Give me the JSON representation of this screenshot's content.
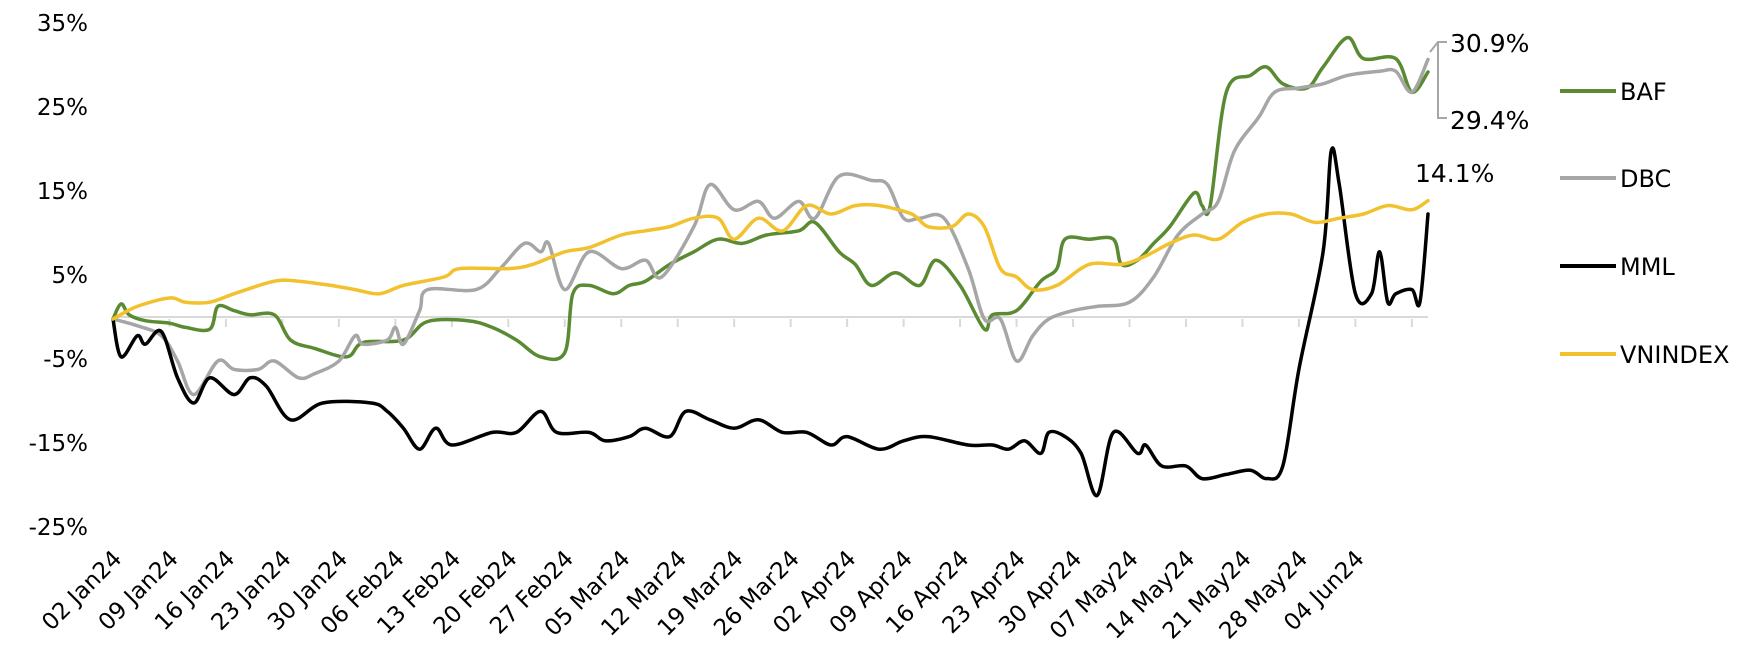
{
  "chart_data": {
    "type": "line",
    "title": "",
    "xlabel": "",
    "ylabel": "",
    "ylim": [
      -25,
      35
    ],
    "y_ticks": [
      "35%",
      "25%",
      "15%",
      "5%",
      "-5%",
      "-15%",
      "-25%"
    ],
    "y_tick_values": [
      35,
      25,
      15,
      5,
      -5,
      -15,
      -25
    ],
    "x_ticks": [
      "02 Jan24",
      "09 Jan24",
      "16 Jan24",
      "23 Jan24",
      "30 Jan24",
      "06 Feb24",
      "13 Feb24",
      "20 Feb24",
      "27 Feb24",
      "05 Mar24",
      "12 Mar24",
      "19 Mar24",
      "26 Mar24",
      "02 Apr24",
      "09 Apr24",
      "16 Apr24",
      "23 Apr24",
      "30 Apr24",
      "07 May24",
      "14 May24",
      "21 May24",
      "28 May24",
      "04 Jun24"
    ],
    "x_domain": [
      "2024-01-02",
      "2024-06-13"
    ],
    "legend_position": "right",
    "grid": false,
    "series": [
      {
        "name": "BAF",
        "color": "#5a8a32",
        "points": [
          [
            "2024-01-02",
            0
          ],
          [
            "2024-01-03",
            1.8
          ],
          [
            "2024-01-04",
            0.5
          ],
          [
            "2024-01-06",
            -0.2
          ],
          [
            "2024-01-09",
            -0.5
          ],
          [
            "2024-01-11",
            -1
          ],
          [
            "2024-01-14",
            -1.2
          ],
          [
            "2024-01-15",
            1.5
          ],
          [
            "2024-01-17",
            1
          ],
          [
            "2024-01-19",
            0.5
          ],
          [
            "2024-01-22",
            0.5
          ],
          [
            "2024-01-24",
            -2.5
          ],
          [
            "2024-01-27",
            -3.5
          ],
          [
            "2024-01-31",
            -4.5
          ],
          [
            "2024-02-02",
            -2.8
          ],
          [
            "2024-02-07",
            -2.5
          ],
          [
            "2024-02-10",
            -0.3
          ],
          [
            "2024-02-15",
            -0.2
          ],
          [
            "2024-02-18",
            -1
          ],
          [
            "2024-02-21",
            -2.5
          ],
          [
            "2024-02-24",
            -4.5
          ],
          [
            "2024-02-27",
            -4
          ],
          [
            "2024-02-28",
            3
          ],
          [
            "2024-03-01",
            4
          ],
          [
            "2024-03-04",
            3
          ],
          [
            "2024-03-06",
            4
          ],
          [
            "2024-03-08",
            4.5
          ],
          [
            "2024-03-11",
            6.5
          ],
          [
            "2024-03-14",
            8
          ],
          [
            "2024-03-17",
            9.5
          ],
          [
            "2024-03-20",
            9
          ],
          [
            "2024-03-23",
            10
          ],
          [
            "2024-03-27",
            10.5
          ],
          [
            "2024-03-29",
            11.5
          ],
          [
            "2024-04-01",
            8
          ],
          [
            "2024-04-03",
            6.5
          ],
          [
            "2024-04-05",
            4
          ],
          [
            "2024-04-08",
            5.5
          ],
          [
            "2024-04-11",
            4
          ],
          [
            "2024-04-13",
            7
          ],
          [
            "2024-04-16",
            4
          ],
          [
            "2024-04-19",
            -1.2
          ],
          [
            "2024-04-20",
            0.5
          ],
          [
            "2024-04-23",
            1
          ],
          [
            "2024-04-26",
            4.5
          ],
          [
            "2024-04-28",
            6
          ],
          [
            "2024-04-29",
            9.5
          ],
          [
            "2024-05-02",
            9.5
          ],
          [
            "2024-05-05",
            9.5
          ],
          [
            "2024-05-06",
            6.5
          ],
          [
            "2024-05-08",
            7
          ],
          [
            "2024-05-10",
            9
          ],
          [
            "2024-05-12",
            11
          ],
          [
            "2024-05-15",
            15
          ],
          [
            "2024-05-16",
            13.5
          ],
          [
            "2024-05-17",
            13.5
          ],
          [
            "2024-05-19",
            27
          ],
          [
            "2024-05-22",
            29
          ],
          [
            "2024-05-24",
            30
          ],
          [
            "2024-05-26",
            28
          ],
          [
            "2024-05-29",
            27.5
          ],
          [
            "2024-05-31",
            30
          ],
          [
            "2024-06-03",
            33.5
          ],
          [
            "2024-06-05",
            31
          ],
          [
            "2024-06-09",
            31
          ],
          [
            "2024-06-11",
            27
          ],
          [
            "2024-06-13",
            29.4
          ]
        ]
      },
      {
        "name": "DBC",
        "color": "#a6a6a6",
        "points": [
          [
            "2024-01-02",
            0
          ],
          [
            "2024-01-05",
            -0.8
          ],
          [
            "2024-01-08",
            -2
          ],
          [
            "2024-01-10",
            -5
          ],
          [
            "2024-01-12",
            -9
          ],
          [
            "2024-01-15",
            -5
          ],
          [
            "2024-01-17",
            -6
          ],
          [
            "2024-01-20",
            -6
          ],
          [
            "2024-01-22",
            -5
          ],
          [
            "2024-01-25",
            -7
          ],
          [
            "2024-01-27",
            -6.5
          ],
          [
            "2024-01-30",
            -5
          ],
          [
            "2024-02-01",
            -2
          ],
          [
            "2024-02-02",
            -3
          ],
          [
            "2024-02-05",
            -2.5
          ],
          [
            "2024-02-06",
            -1
          ],
          [
            "2024-02-07",
            -3
          ],
          [
            "2024-02-09",
            1
          ],
          [
            "2024-02-10",
            3.5
          ],
          [
            "2024-02-16",
            3.5
          ],
          [
            "2024-02-19",
            6
          ],
          [
            "2024-02-22",
            9
          ],
          [
            "2024-02-24",
            8
          ],
          [
            "2024-02-25",
            9
          ],
          [
            "2024-02-27",
            3.5
          ],
          [
            "2024-03-01",
            8
          ],
          [
            "2024-03-05",
            6
          ],
          [
            "2024-03-08",
            7
          ],
          [
            "2024-03-10",
            5
          ],
          [
            "2024-03-14",
            11
          ],
          [
            "2024-03-16",
            16
          ],
          [
            "2024-03-19",
            13
          ],
          [
            "2024-03-22",
            14
          ],
          [
            "2024-03-24",
            12
          ],
          [
            "2024-03-27",
            14
          ],
          [
            "2024-03-29",
            12
          ],
          [
            "2024-04-01",
            17
          ],
          [
            "2024-04-05",
            16.5
          ],
          [
            "2024-04-07",
            16
          ],
          [
            "2024-04-09",
            12
          ],
          [
            "2024-04-11",
            12
          ],
          [
            "2024-04-14",
            12
          ],
          [
            "2024-04-17",
            6
          ],
          [
            "2024-04-19",
            0
          ],
          [
            "2024-04-21",
            0
          ],
          [
            "2024-04-23",
            -5
          ],
          [
            "2024-04-25",
            -2
          ],
          [
            "2024-04-27",
            0
          ],
          [
            "2024-04-30",
            1
          ],
          [
            "2024-05-03",
            1.5
          ],
          [
            "2024-05-07",
            2
          ],
          [
            "2024-05-10",
            5
          ],
          [
            "2024-05-13",
            10
          ],
          [
            "2024-05-16",
            12.5
          ],
          [
            "2024-05-18",
            14
          ],
          [
            "2024-05-20",
            20
          ],
          [
            "2024-05-23",
            24
          ],
          [
            "2024-05-25",
            27
          ],
          [
            "2024-05-28",
            27.5
          ],
          [
            "2024-05-31",
            28
          ],
          [
            "2024-06-03",
            29
          ],
          [
            "2024-06-07",
            29.5
          ],
          [
            "2024-06-09",
            29.5
          ],
          [
            "2024-06-11",
            27
          ],
          [
            "2024-06-13",
            30.9
          ]
        ]
      },
      {
        "name": "MML",
        "color": "#000000",
        "points": [
          [
            "2024-01-02",
            0
          ],
          [
            "2024-01-03",
            -4.5
          ],
          [
            "2024-01-05",
            -2
          ],
          [
            "2024-01-06",
            -3
          ],
          [
            "2024-01-08",
            -1.5
          ],
          [
            "2024-01-10",
            -7
          ],
          [
            "2024-01-12",
            -10
          ],
          [
            "2024-01-14",
            -7
          ],
          [
            "2024-01-17",
            -9
          ],
          [
            "2024-01-19",
            -7
          ],
          [
            "2024-01-21",
            -8
          ],
          [
            "2024-01-24",
            -12
          ],
          [
            "2024-01-28",
            -10
          ],
          [
            "2024-02-03",
            -10
          ],
          [
            "2024-02-05",
            -11
          ],
          [
            "2024-02-07",
            -13
          ],
          [
            "2024-02-09",
            -15.5
          ],
          [
            "2024-02-11",
            -13
          ],
          [
            "2024-02-13",
            -15
          ],
          [
            "2024-02-18",
            -13.5
          ],
          [
            "2024-02-21",
            -13.5
          ],
          [
            "2024-02-24",
            -11
          ],
          [
            "2024-02-26",
            -13.5
          ],
          [
            "2024-03-01",
            -13.5
          ],
          [
            "2024-03-03",
            -14.5
          ],
          [
            "2024-03-06",
            -14
          ],
          [
            "2024-03-08",
            -13
          ],
          [
            "2024-03-11",
            -14
          ],
          [
            "2024-03-13",
            -11
          ],
          [
            "2024-03-16",
            -12
          ],
          [
            "2024-03-19",
            -13
          ],
          [
            "2024-03-22",
            -12
          ],
          [
            "2024-03-25",
            -13.5
          ],
          [
            "2024-03-28",
            -13.5
          ],
          [
            "2024-03-31",
            -15
          ],
          [
            "2024-04-02",
            -14
          ],
          [
            "2024-04-06",
            -15.5
          ],
          [
            "2024-04-09",
            -14.5
          ],
          [
            "2024-04-12",
            -14
          ],
          [
            "2024-04-17",
            -15
          ],
          [
            "2024-04-20",
            -15
          ],
          [
            "2024-04-22",
            -15.5
          ],
          [
            "2024-04-24",
            -14.5
          ],
          [
            "2024-04-26",
            -16
          ],
          [
            "2024-04-27",
            -13.5
          ],
          [
            "2024-04-29",
            -14
          ],
          [
            "2024-05-01",
            -16
          ],
          [
            "2024-05-03",
            -21
          ],
          [
            "2024-05-05",
            -13.5
          ],
          [
            "2024-05-08",
            -16
          ],
          [
            "2024-05-09",
            -15
          ],
          [
            "2024-05-11",
            -17.5
          ],
          [
            "2024-05-14",
            -17.5
          ],
          [
            "2024-05-16",
            -19
          ],
          [
            "2024-05-19",
            -18.5
          ],
          [
            "2024-05-22",
            -18
          ],
          [
            "2024-05-24",
            -19
          ],
          [
            "2024-05-26",
            -17.5
          ],
          [
            "2024-05-28",
            -6
          ],
          [
            "2024-05-31",
            8
          ],
          [
            "2024-06-01",
            20
          ],
          [
            "2024-06-02",
            16
          ],
          [
            "2024-06-04",
            3
          ],
          [
            "2024-06-06",
            3
          ],
          [
            "2024-06-07",
            8
          ],
          [
            "2024-06-08",
            2
          ],
          [
            "2024-06-09",
            3
          ],
          [
            "2024-06-11",
            3.5
          ],
          [
            "2024-06-12",
            2
          ],
          [
            "2024-06-13",
            12.5
          ]
        ]
      },
      {
        "name": "VNINDEX",
        "color": "#f2c12e",
        "points": [
          [
            "2024-01-02",
            0
          ],
          [
            "2024-01-05",
            1.5
          ],
          [
            "2024-01-09",
            2.5
          ],
          [
            "2024-01-11",
            2
          ],
          [
            "2024-01-14",
            2
          ],
          [
            "2024-01-17",
            3
          ],
          [
            "2024-01-22",
            4.5
          ],
          [
            "2024-01-25",
            4.5
          ],
          [
            "2024-01-29",
            4
          ],
          [
            "2024-02-01",
            3.5
          ],
          [
            "2024-02-04",
            3
          ],
          [
            "2024-02-07",
            4
          ],
          [
            "2024-02-12",
            5
          ],
          [
            "2024-02-14",
            6
          ],
          [
            "2024-02-20",
            6
          ],
          [
            "2024-02-23",
            6.5
          ],
          [
            "2024-02-27",
            8
          ],
          [
            "2024-03-01",
            8.5
          ],
          [
            "2024-03-05",
            10
          ],
          [
            "2024-03-08",
            10.5
          ],
          [
            "2024-03-11",
            11
          ],
          [
            "2024-03-14",
            12
          ],
          [
            "2024-03-17",
            12
          ],
          [
            "2024-03-19",
            9.5
          ],
          [
            "2024-03-22",
            12
          ],
          [
            "2024-03-25",
            10.5
          ],
          [
            "2024-03-28",
            13.5
          ],
          [
            "2024-03-31",
            12.5
          ],
          [
            "2024-04-03",
            13.5
          ],
          [
            "2024-04-06",
            13.5
          ],
          [
            "2024-04-10",
            12.5
          ],
          [
            "2024-04-12",
            11
          ],
          [
            "2024-04-15",
            11
          ],
          [
            "2024-04-17",
            12.5
          ],
          [
            "2024-04-19",
            11
          ],
          [
            "2024-04-21",
            6
          ],
          [
            "2024-04-23",
            5
          ],
          [
            "2024-04-25",
            3.5
          ],
          [
            "2024-04-28",
            4
          ],
          [
            "2024-05-02",
            6.5
          ],
          [
            "2024-05-06",
            6.5
          ],
          [
            "2024-05-09",
            7.5
          ],
          [
            "2024-05-12",
            9
          ],
          [
            "2024-05-15",
            10
          ],
          [
            "2024-05-18",
            9.5
          ],
          [
            "2024-05-21",
            11.5
          ],
          [
            "2024-05-24",
            12.5
          ],
          [
            "2024-05-27",
            12.5
          ],
          [
            "2024-05-30",
            11.5
          ],
          [
            "2024-06-02",
            12
          ],
          [
            "2024-06-05",
            12.5
          ],
          [
            "2024-06-08",
            13.5
          ],
          [
            "2024-06-11",
            13
          ],
          [
            "2024-06-13",
            14.1
          ]
        ]
      }
    ],
    "end_labels": [
      "30.9%",
      "29.4%",
      "14.1%"
    ]
  }
}
